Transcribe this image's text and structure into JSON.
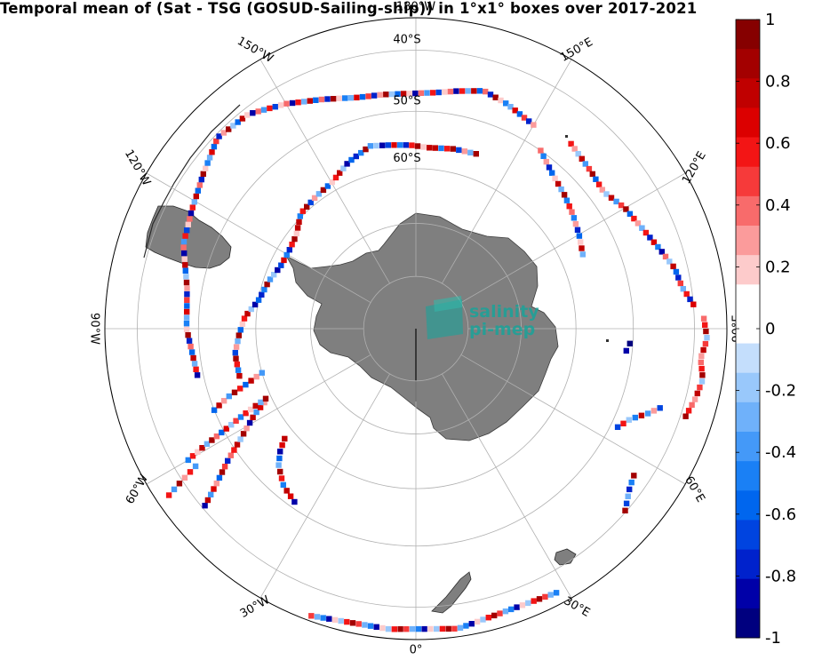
{
  "title": "Temporal mean of (Sat - TSG (GOSUD-Sailing-ship)) in 1°x1° boxes over 2017-2021",
  "watermark": {
    "line1": "salinity",
    "line2": "pi-mep",
    "color": "#1aa39a"
  },
  "map": {
    "projection": "south-polar-stereographic",
    "boundary_lat": -35,
    "ocean_color": "#ffffff",
    "land_color": "#7f7f7f",
    "grid_color": "#b0b0b0",
    "lon_labels": [
      {
        "lon": 0,
        "text": "0°"
      },
      {
        "lon": 30,
        "text": "30°E"
      },
      {
        "lon": 60,
        "text": "60°E"
      },
      {
        "lon": 90,
        "text": "90°E"
      },
      {
        "lon": 120,
        "text": "120°E"
      },
      {
        "lon": 150,
        "text": "150°E"
      },
      {
        "lon": 180,
        "text": "180°W"
      },
      {
        "lon": -150,
        "text": "150°W"
      },
      {
        "lon": -120,
        "text": "120°W"
      },
      {
        "lon": -90,
        "text": "90°W"
      },
      {
        "lon": -60,
        "text": "60°W"
      },
      {
        "lon": -30,
        "text": "30°W"
      }
    ],
    "lat_labels": [
      {
        "lat": -60,
        "text": "60°S"
      },
      {
        "lat": -50,
        "text": "50°S"
      },
      {
        "lat": -40,
        "text": "40°S"
      }
    ]
  },
  "colorbar": {
    "min": -1,
    "max": 1,
    "ticks": [
      {
        "value": 1,
        "text": "1"
      },
      {
        "value": 0.8,
        "text": "0.8"
      },
      {
        "value": 0.6,
        "text": "0.6"
      },
      {
        "value": 0.4,
        "text": "0.4"
      },
      {
        "value": 0.2,
        "text": "0.2"
      },
      {
        "value": 0,
        "text": "0"
      },
      {
        "value": -0.2,
        "text": "-0.2"
      },
      {
        "value": -0.4,
        "text": "-0.4"
      },
      {
        "value": -0.6,
        "text": "-0.6"
      },
      {
        "value": -0.8,
        "text": "-0.8"
      },
      {
        "value": -1,
        "text": "-1"
      }
    ],
    "colors": [
      "#00007f",
      "#0000a8",
      "#0022cc",
      "#0044e0",
      "#0066ee",
      "#1a80f5",
      "#4499f8",
      "#6fb1fa",
      "#99c8fb",
      "#c4defc",
      "#ffffff",
      "#ffffff",
      "#fdcbcb",
      "#fb9b9b",
      "#f86b6b",
      "#f63a3a",
      "#f31515",
      "#dc0000",
      "#c00000",
      "#a30000",
      "#860000"
    ]
  },
  "chart_data": {
    "type": "heatmap",
    "title": "Temporal mean of (Sat - TSG (GOSUD-Sailing-ship)) in 1°x1° boxes over 2017-2021",
    "variable": "Sat - TSG",
    "color_range": [
      -1,
      1
    ],
    "tracks": [
      {
        "path": [
          [
            -20,
            -35.8
          ],
          [
            -5,
            -36.4
          ],
          [
            8,
            -36.2
          ],
          [
            18,
            -37.2
          ],
          [
            28,
            -36.8
          ]
        ],
        "values": [
          0.5,
          -0.3,
          -0.5,
          -0.9,
          0.2,
          -0.2,
          0.6,
          0.9
        ]
      },
      {
        "path": [
          [
            -50,
            -40.5
          ],
          [
            -52,
            -44
          ],
          [
            -55,
            -48
          ],
          [
            -58,
            -52
          ],
          [
            -62,
            -56
          ],
          [
            -64,
            -58.5
          ]
        ],
        "values": [
          -0.9,
          0.8,
          -0.4,
          0.7,
          0.3,
          -0.6,
          0.9,
          0.5,
          -0.8,
          0.4,
          0.6,
          0.8,
          -0.2,
          0.9,
          0.3
        ]
      },
      {
        "path": [
          [
            -60,
            -42.5
          ],
          [
            -61,
            -46
          ],
          [
            -62,
            -50
          ],
          [
            -63,
            -53
          ],
          [
            -64,
            -56
          ],
          [
            -65,
            -59
          ]
        ],
        "values": [
          -0.5,
          0.6,
          0.2,
          0.8,
          -0.3,
          0.9,
          0.4,
          -0.6,
          0.7,
          -0.2,
          0.5
        ]
      },
      {
        "path": [
          [
            -68,
            -50
          ],
          [
            -70,
            -53
          ],
          [
            -72,
            -57
          ],
          [
            -74,
            -60
          ]
        ],
        "values": [
          -0.6,
          0.8,
          0.3,
          -0.4,
          0.9,
          0.6
        ]
      },
      {
        "path": [
          [
            -75,
            -56
          ],
          [
            -82,
            -56
          ],
          [
            -88,
            -57
          ],
          [
            -94,
            -58
          ],
          [
            -100,
            -60
          ],
          [
            -108,
            -61
          ],
          [
            -115,
            -62
          ],
          [
            -122,
            -62
          ],
          [
            -128,
            -61.5
          ],
          [
            -135,
            -59.5
          ],
          [
            -143,
            -59
          ],
          [
            -150,
            -58.5
          ],
          [
            -158,
            -56.5
          ],
          [
            -166,
            -55
          ],
          [
            -172,
            -55.5
          ],
          [
            -178,
            -55.8
          ],
          [
            176,
            -56.2
          ],
          [
            168,
            -55.8
          ],
          [
            161,
            -55.6
          ]
        ],
        "values": [
          0.8,
          -0.5,
          0.6,
          0.9,
          -0.7,
          0.3,
          -0.3,
          0.9,
          -0.6,
          0.2,
          0.6,
          0.8,
          -0.2,
          -0.9,
          -0.6,
          -0.8,
          -0.5,
          0.9,
          -0.4,
          -0.2,
          -0.9,
          -0.7,
          0.7,
          -0.5,
          -0.8,
          0.6,
          0.9,
          0.2,
          0.8
        ]
      },
      {
        "path": [
          [
            -78,
            -49
          ],
          [
            -90,
            -48
          ],
          [
            -100,
            -47.5
          ],
          [
            -110,
            -45
          ],
          [
            -118,
            -44
          ],
          [
            -126,
            -42.5
          ],
          [
            -134,
            -40.5
          ],
          [
            -142,
            -41
          ],
          [
            -150,
            -43
          ],
          [
            -158,
            -45
          ],
          [
            -166,
            -46.5
          ],
          [
            -172,
            -46.8
          ],
          [
            -178,
            -47
          ],
          [
            176,
            -46.8
          ],
          [
            170,
            -46
          ],
          [
            164,
            -45
          ],
          [
            158,
            -45.8
          ],
          [
            150,
            -47
          ]
        ],
        "values": [
          -0.9,
          0.6,
          -0.3,
          0.8,
          -0.6,
          0.4,
          -0.8,
          0.9,
          0.2,
          -0.5,
          -0.3,
          0.7,
          -0.6,
          0.5,
          -0.8,
          0.3,
          0.9,
          -0.2,
          -0.6,
          0.8,
          0.2,
          -0.9,
          0.4,
          -0.4,
          0.6,
          -0.7,
          0.2,
          0.4
        ]
      },
      {
        "path": [
          [
            145,
            -50
          ],
          [
            138,
            -52
          ],
          [
            132,
            -53
          ],
          [
            126,
            -54
          ],
          [
            120,
            -55
          ],
          [
            114,
            -56
          ]
        ],
        "values": [
          0.4,
          -0.5,
          0.3,
          -0.8,
          -0.6,
          0.2,
          0.8,
          -0.3,
          0.9,
          -0.5,
          0.6
        ]
      },
      {
        "path": [
          [
            140,
            -46
          ],
          [
            132,
            -47
          ],
          [
            126,
            -47.5
          ],
          [
            120,
            -46
          ],
          [
            114,
            -45
          ]
        ],
        "values": [
          0.6,
          0.3,
          -0.2,
          0.8,
          -0.4,
          0.5,
          0.9,
          -0.6
        ]
      },
      {
        "path": [
          [
            114,
            -45
          ],
          [
            108,
            -43.5
          ],
          [
            103,
            -42
          ],
          [
            99,
            -41.5
          ],
          [
            95,
            -40
          ]
        ],
        "values": [
          -0.3,
          0.6,
          -0.8,
          0.7,
          -0.5,
          -0.9,
          0.4,
          -0.2,
          0.8,
          -0.6,
          -0.8,
          0.5
        ]
      },
      {
        "path": [
          [
            92,
            -38.5
          ],
          [
            88,
            -38
          ],
          [
            84,
            -38.8
          ],
          [
            80,
            -38
          ],
          [
            76,
            -38.5
          ],
          [
            72,
            -39.2
          ]
        ],
        "values": [
          0.4,
          0.6,
          0.9,
          -0.2,
          0.5,
          0.8,
          0.3
        ]
      },
      {
        "path": [
          [
            72,
            -43.5
          ],
          [
            70,
            -45
          ],
          [
            67,
            -47.5
          ],
          [
            64,
            -48.8
          ]
        ],
        "values": [
          -0.7,
          0.3,
          -0.4,
          0.8,
          -0.5,
          -0.2,
          0.6
        ]
      },
      {
        "path": [
          [
            56,
            -42.5
          ],
          [
            53,
            -41.8
          ],
          [
            49,
            -40.2
          ]
        ],
        "values": [
          0.9,
          -0.5,
          -0.8,
          -0.3,
          -0.7
        ]
      },
      {
        "path": [
          [
            -35,
            -51
          ],
          [
            -40,
            -52
          ],
          [
            -45,
            -54
          ],
          [
            -48,
            -56
          ],
          [
            -50,
            -58
          ]
        ],
        "values": [
          -0.9,
          0.7,
          0.8,
          -0.5,
          0.6,
          0.9,
          -0.3,
          -0.6
        ]
      },
      {
        "path": [
          [
            -56,
            -37
          ],
          [
            -57,
            -40
          ],
          [
            -58,
            -43
          ]
        ],
        "values": [
          0.6,
          -0.4,
          0.9,
          0.3
        ]
      },
      {
        "path": [
          [
            86,
            -50.5
          ],
          [
            84,
            -51
          ]
        ],
        "values": [
          -1.0,
          -0.9
        ]
      }
    ]
  }
}
